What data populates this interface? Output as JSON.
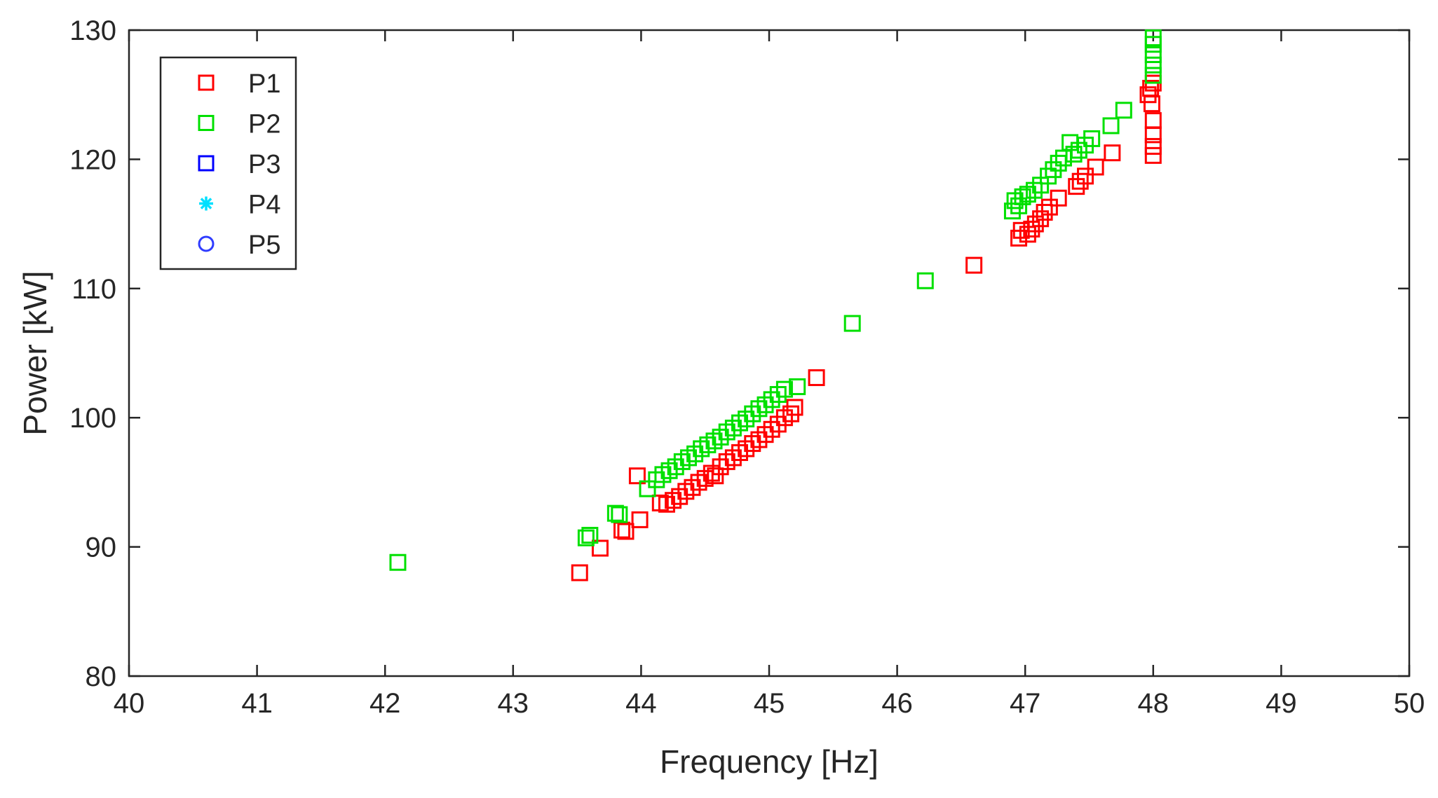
{
  "chart_data": {
    "type": "scatter",
    "title": "",
    "xlabel": "Frequency [Hz]",
    "ylabel": "Power [kW]",
    "xlim": [
      40,
      50
    ],
    "ylim": [
      80,
      130
    ],
    "x_ticks": [
      "40",
      "41",
      "42",
      "43",
      "44",
      "45",
      "46",
      "47",
      "48",
      "49",
      "50"
    ],
    "y_ticks": [
      "80",
      "90",
      "100",
      "110",
      "120",
      "130"
    ],
    "grid": false,
    "legend_position": "top-left",
    "series": [
      {
        "name": "P1",
        "marker": "square",
        "color": "#ff0000",
        "points": [
          [
            43.52,
            88.0
          ],
          [
            43.68,
            89.9
          ],
          [
            43.85,
            91.3
          ],
          [
            43.88,
            91.2
          ],
          [
            43.99,
            92.1
          ],
          [
            43.97,
            95.5
          ],
          [
            44.15,
            93.4
          ],
          [
            44.2,
            93.3
          ],
          [
            44.25,
            93.6
          ],
          [
            44.3,
            93.9
          ],
          [
            44.35,
            94.3
          ],
          [
            44.4,
            94.6
          ],
          [
            44.45,
            95.0
          ],
          [
            44.5,
            95.3
          ],
          [
            44.55,
            95.7
          ],
          [
            44.58,
            95.5
          ],
          [
            44.62,
            96.2
          ],
          [
            44.67,
            96.6
          ],
          [
            44.72,
            96.9
          ],
          [
            44.77,
            97.3
          ],
          [
            44.82,
            97.6
          ],
          [
            44.87,
            98.0
          ],
          [
            44.92,
            98.3
          ],
          [
            44.97,
            98.7
          ],
          [
            45.02,
            99.1
          ],
          [
            45.07,
            99.5
          ],
          [
            45.12,
            100.0
          ],
          [
            45.17,
            100.3
          ],
          [
            45.2,
            100.8
          ],
          [
            45.37,
            103.1
          ],
          [
            46.6,
            111.8
          ],
          [
            46.95,
            113.9
          ],
          [
            46.97,
            114.5
          ],
          [
            47.02,
            114.2
          ],
          [
            47.05,
            114.6
          ],
          [
            47.08,
            115.0
          ],
          [
            47.12,
            115.4
          ],
          [
            47.15,
            115.9
          ],
          [
            47.19,
            116.3
          ],
          [
            47.26,
            117.0
          ],
          [
            47.4,
            117.9
          ],
          [
            47.43,
            118.3
          ],
          [
            47.47,
            118.7
          ],
          [
            47.55,
            119.4
          ],
          [
            47.68,
            120.5
          ],
          [
            47.96,
            125.0
          ],
          [
            47.98,
            125.5
          ],
          [
            48.0,
            125.9
          ],
          [
            47.99,
            124.3
          ],
          [
            48.0,
            123.0
          ],
          [
            48.0,
            121.9
          ],
          [
            48.0,
            121.0
          ],
          [
            48.0,
            120.3
          ]
        ]
      },
      {
        "name": "P2",
        "marker": "square",
        "color": "#00e000",
        "points": [
          [
            42.1,
            88.8
          ],
          [
            43.57,
            90.7
          ],
          [
            43.6,
            90.9
          ],
          [
            43.8,
            92.6
          ],
          [
            43.83,
            92.5
          ],
          [
            44.05,
            94.5
          ],
          [
            44.12,
            95.2
          ],
          [
            44.17,
            95.6
          ],
          [
            44.22,
            95.9
          ],
          [
            44.27,
            96.2
          ],
          [
            44.32,
            96.6
          ],
          [
            44.37,
            96.9
          ],
          [
            44.42,
            97.2
          ],
          [
            44.47,
            97.6
          ],
          [
            44.52,
            97.9
          ],
          [
            44.57,
            98.2
          ],
          [
            44.62,
            98.5
          ],
          [
            44.67,
            98.9
          ],
          [
            44.72,
            99.2
          ],
          [
            44.77,
            99.6
          ],
          [
            44.82,
            99.9
          ],
          [
            44.87,
            100.3
          ],
          [
            44.92,
            100.7
          ],
          [
            44.97,
            101.0
          ],
          [
            45.02,
            101.4
          ],
          [
            45.07,
            101.8
          ],
          [
            45.12,
            102.2
          ],
          [
            45.22,
            102.4
          ],
          [
            45.65,
            107.3
          ],
          [
            46.22,
            110.6
          ],
          [
            46.9,
            116.0
          ],
          [
            46.92,
            116.8
          ],
          [
            46.95,
            116.4
          ],
          [
            46.98,
            117.1
          ],
          [
            47.02,
            117.3
          ],
          [
            47.07,
            117.6
          ],
          [
            47.12,
            118.0
          ],
          [
            47.18,
            118.7
          ],
          [
            47.22,
            119.2
          ],
          [
            47.26,
            119.7
          ],
          [
            47.3,
            120.1
          ],
          [
            47.35,
            121.3
          ],
          [
            47.38,
            120.4
          ],
          [
            47.42,
            120.7
          ],
          [
            47.47,
            121.1
          ],
          [
            47.52,
            121.6
          ],
          [
            47.67,
            122.6
          ],
          [
            47.77,
            123.8
          ],
          [
            48.0,
            126.5
          ],
          [
            48.0,
            127.3
          ],
          [
            48.0,
            128.1
          ],
          [
            48.0,
            128.9
          ],
          [
            48.0,
            129.4
          ]
        ]
      },
      {
        "name": "P3",
        "marker": "square",
        "color": "#0000ff",
        "points": []
      },
      {
        "name": "P4",
        "marker": "asterisk",
        "color": "#00e0ff",
        "points": []
      },
      {
        "name": "P5",
        "marker": "circle",
        "color": "#2f3cff",
        "points": []
      }
    ]
  }
}
